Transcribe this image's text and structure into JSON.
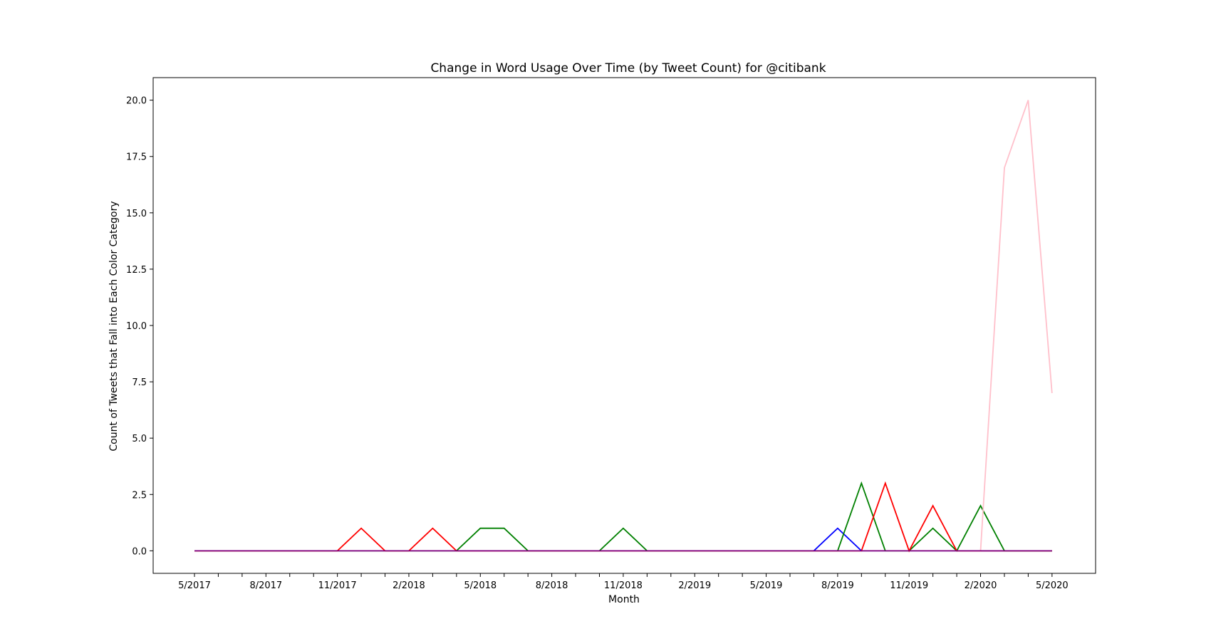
{
  "chart_data": {
    "type": "line",
    "title": "Change in Word Usage Over Time (by Tweet Count) for @citibank",
    "xlabel": "Month",
    "ylabel": "Count of Tweets that Fall into Each Color Category",
    "x": [
      "2017-05",
      "2017-06",
      "2017-07",
      "2017-08",
      "2017-09",
      "2017-10",
      "2017-11",
      "2017-12",
      "2018-01",
      "2018-02",
      "2018-03",
      "2018-04",
      "2018-05",
      "2018-06",
      "2018-07",
      "2018-08",
      "2018-09",
      "2018-10",
      "2018-11",
      "2018-12",
      "2019-01",
      "2019-02",
      "2019-03",
      "2019-04",
      "2019-05",
      "2019-06",
      "2019-07",
      "2019-08",
      "2019-09",
      "2019-10",
      "2019-11",
      "2019-12",
      "2020-01",
      "2020-02",
      "2020-03",
      "2020-04",
      "2020-05"
    ],
    "xticks": [
      "5/2017",
      "8/2017",
      "11/2017",
      "2/2018",
      "5/2018",
      "8/2018",
      "11/2018",
      "2/2019",
      "5/2019",
      "8/2019",
      "11/2019",
      "2/2020",
      "5/2020"
    ],
    "yticks": [
      "0.0",
      "2.5",
      "5.0",
      "7.5",
      "10.0",
      "12.5",
      "15.0",
      "17.5",
      "20.0"
    ],
    "ylim": [
      -1,
      21
    ],
    "grid": false,
    "series": [
      {
        "color": "#0000ff",
        "values": [
          0,
          0,
          0,
          0,
          0,
          0,
          0,
          0,
          0,
          0,
          0,
          0,
          0,
          0,
          0,
          0,
          0,
          0,
          0,
          0,
          0,
          0,
          0,
          0,
          0,
          0,
          0,
          1,
          0,
          0,
          0,
          0,
          0,
          0,
          0,
          0,
          0
        ]
      },
      {
        "color": "#008000",
        "values": [
          0,
          0,
          0,
          0,
          0,
          0,
          0,
          0,
          0,
          0,
          0,
          0,
          1,
          1,
          0,
          0,
          0,
          0,
          1,
          0,
          0,
          0,
          0,
          0,
          0,
          0,
          0,
          0,
          3,
          0,
          0,
          1,
          0,
          2,
          0,
          0,
          0
        ]
      },
      {
        "color": "#ffc0cb",
        "values": [
          0,
          0,
          0,
          0,
          0,
          0,
          0,
          0,
          0,
          0,
          0,
          0,
          0,
          0,
          0,
          0,
          0,
          0,
          0,
          0,
          0,
          0,
          0,
          0,
          0,
          0,
          0,
          0,
          0,
          0,
          0,
          0,
          0,
          0,
          17,
          20,
          7
        ]
      },
      {
        "color": "#ff0000",
        "values": [
          0,
          0,
          0,
          0,
          0,
          0,
          0,
          1,
          0,
          0,
          1,
          0,
          0,
          0,
          0,
          0,
          0,
          0,
          0,
          0,
          0,
          0,
          0,
          0,
          0,
          0,
          0,
          0,
          0,
          3,
          0,
          2,
          0,
          0,
          0,
          0,
          0
        ]
      },
      {
        "color": "#800080",
        "values": [
          0,
          0,
          0,
          0,
          0,
          0,
          0,
          0,
          0,
          0,
          0,
          0,
          0,
          0,
          0,
          0,
          0,
          0,
          0,
          0,
          0,
          0,
          0,
          0,
          0,
          0,
          0,
          0,
          0,
          0,
          0,
          0,
          0,
          0,
          0,
          0,
          0
        ]
      }
    ]
  }
}
